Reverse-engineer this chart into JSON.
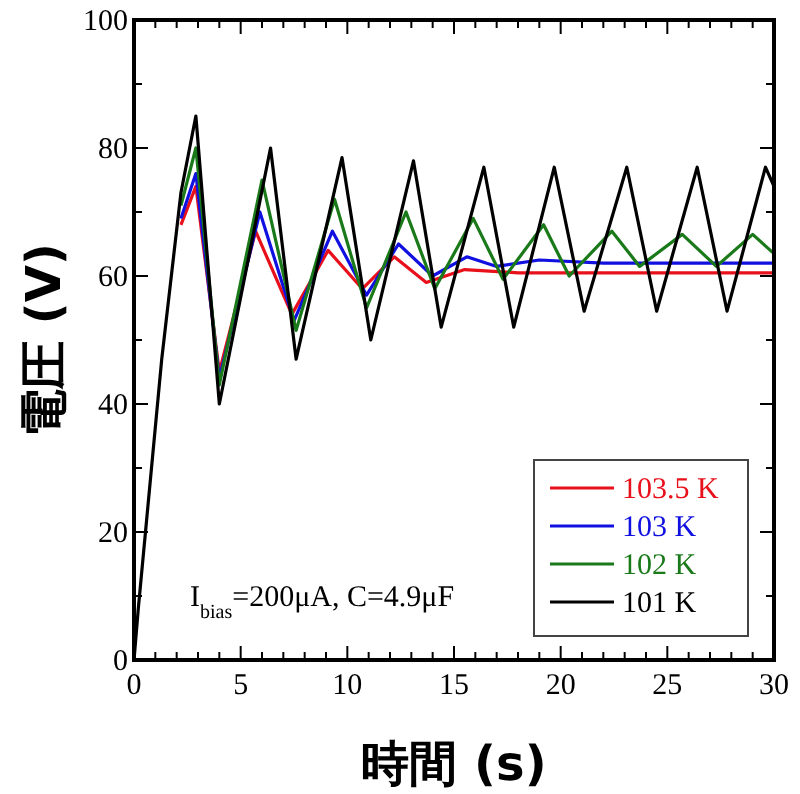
{
  "chart_data": {
    "type": "line",
    "xlabel": "時間 (s)",
    "ylabel": "電圧 (V)",
    "xlim": [
      0,
      30
    ],
    "ylim": [
      0,
      100
    ],
    "xticks": [
      0,
      {
        "value": 1,
        "label": null
      },
      {
        "value": 2,
        "label": null
      },
      {
        "value": 3,
        "label": null
      },
      {
        "value": 4,
        "label": null
      },
      5,
      {
        "value": 6,
        "label": null
      },
      {
        "value": 7,
        "label": null
      },
      {
        "value": 8,
        "label": null
      },
      {
        "value": 9,
        "label": null
      },
      10,
      {
        "value": 11,
        "label": null
      },
      {
        "value": 12,
        "label": null
      },
      {
        "value": 13,
        "label": null
      },
      {
        "value": 14,
        "label": null
      },
      15,
      {
        "value": 16,
        "label": null
      },
      {
        "value": 17,
        "label": null
      },
      {
        "value": 18,
        "label": null
      },
      {
        "value": 19,
        "label": null
      },
      20,
      {
        "value": 21,
        "label": null
      },
      {
        "value": 22,
        "label": null
      },
      {
        "value": 23,
        "label": null
      },
      {
        "value": 24,
        "label": null
      },
      25,
      {
        "value": 26,
        "label": null
      },
      {
        "value": 27,
        "label": null
      },
      {
        "value": 28,
        "label": null
      },
      {
        "value": 29,
        "label": null
      },
      30
    ],
    "yticks": [
      0,
      {
        "value": 10,
        "label": null
      },
      20,
      {
        "value": 30,
        "label": null
      },
      40,
      {
        "value": 50,
        "label": null
      },
      60,
      {
        "value": 70,
        "label": null
      },
      80,
      {
        "value": 90,
        "label": null
      },
      100
    ],
    "grid": false,
    "legend": "bottom right",
    "marker": "none",
    "line_style": "solid",
    "annotations": [
      "I$_{bias}$=200μA, C=4.9μF"
    ],
    "series": [
      {
        "name": "103.5 K",
        "color": "#e8101a",
        "x": [
          2.2,
          2.9,
          4.0,
          5.7,
          7.4,
          9.1,
          10.7,
          12.2,
          13.7,
          15.5,
          18,
          21,
          24,
          27,
          30
        ],
        "values": [
          68,
          74,
          45,
          67,
          54,
          64,
          58,
          63,
          59,
          61,
          60.5,
          60.5,
          60.5,
          60.5,
          60.5
        ]
      },
      {
        "name": "103 K",
        "color": "#1010e0",
        "x": [
          2.2,
          2.9,
          4.0,
          5.9,
          7.5,
          9.3,
          10.9,
          12.4,
          14.0,
          15.6,
          17,
          19,
          22,
          25,
          30
        ],
        "values": [
          69,
          76,
          44,
          70,
          53,
          67,
          57,
          65,
          60,
          63,
          61.5,
          62.5,
          62,
          62,
          62
        ]
      },
      {
        "name": "102 K",
        "color": "#1a7a1a",
        "x": [
          2.2,
          2.9,
          4.0,
          6.0,
          7.6,
          9.4,
          10.9,
          12.75,
          14.1,
          15.9,
          17.3,
          19.2,
          20.4,
          22.4,
          23.7,
          25.7,
          27.3,
          29.0,
          30
        ],
        "values": [
          71,
          80,
          43,
          75,
          51.5,
          72,
          55,
          70,
          58,
          69,
          59.5,
          68,
          60,
          67,
          61.5,
          66.5,
          61.5,
          66.5,
          63.5
        ]
      },
      {
        "name": "101 K",
        "color": "#000000",
        "x": [
          0,
          0.2,
          1.3,
          2.2,
          2.9,
          4.0,
          6.4,
          7.6,
          9.75,
          11.1,
          13.1,
          14.4,
          16.4,
          17.8,
          19.7,
          21.1,
          23.1,
          24.5,
          26.4,
          27.8,
          29.6,
          30
        ],
        "values": [
          0,
          8,
          47,
          73,
          85,
          40,
          80,
          47,
          78.5,
          50,
          78,
          52,
          77,
          52,
          77,
          54.5,
          77,
          54.5,
          77,
          54.5,
          77,
          74
        ]
      }
    ]
  }
}
